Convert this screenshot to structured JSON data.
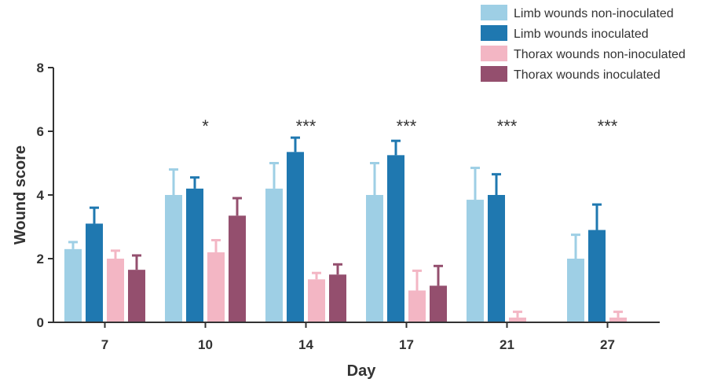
{
  "chart_data": {
    "type": "bar",
    "xlabel": "Day",
    "ylabel": "Wound score",
    "ylim": [
      0,
      8
    ],
    "yticks": [
      0,
      2,
      4,
      6,
      8
    ],
    "categories": [
      "7",
      "10",
      "14",
      "17",
      "21",
      "27"
    ],
    "series": [
      {
        "name": "Limb wounds non-inoculated",
        "color": "#9ecfe5",
        "values": [
          2.3,
          4.0,
          4.2,
          4.0,
          3.85,
          2.0
        ],
        "errors": [
          0.22,
          0.8,
          0.8,
          1.0,
          1.0,
          0.75
        ]
      },
      {
        "name": "Limb wounds inoculated",
        "color": "#1f78b0",
        "values": [
          3.1,
          4.2,
          5.35,
          5.25,
          4.0,
          2.9
        ],
        "errors": [
          0.5,
          0.35,
          0.45,
          0.45,
          0.65,
          0.8
        ]
      },
      {
        "name": "Thorax wounds non-inoculated",
        "color": "#f3b6c4",
        "values": [
          2.0,
          2.2,
          1.35,
          1.0,
          0.15,
          0.15
        ],
        "errors": [
          0.25,
          0.38,
          0.2,
          0.62,
          0.18,
          0.18
        ]
      },
      {
        "name": "Thorax wounds inoculated",
        "color": "#944f6e",
        "values": [
          1.65,
          3.35,
          1.5,
          1.15,
          null,
          null
        ],
        "errors": [
          0.45,
          0.55,
          0.32,
          0.62,
          null,
          null
        ]
      }
    ],
    "significance": [
      "",
      "*",
      "***",
      "***",
      "***",
      "***"
    ],
    "legend_position": "top-right",
    "grid": false
  }
}
